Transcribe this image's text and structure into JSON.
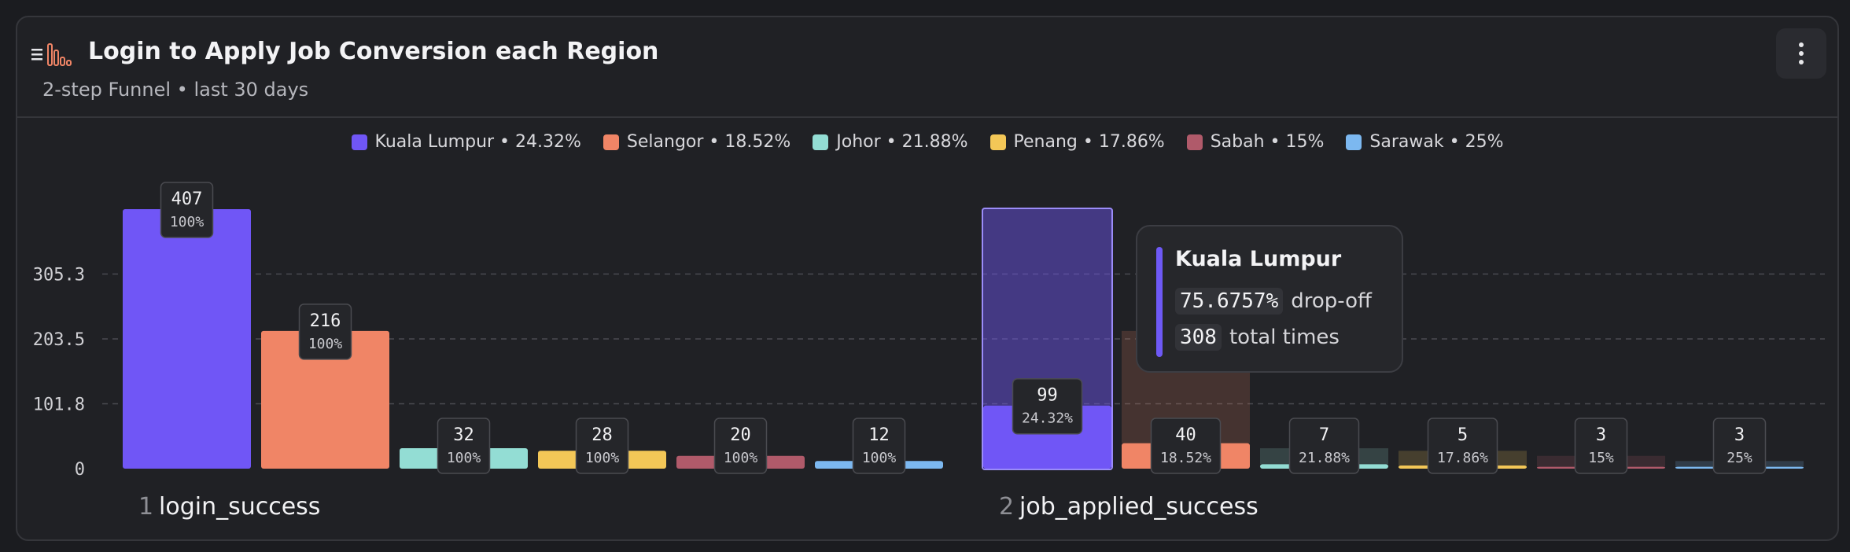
{
  "header": {
    "title": "Login to Apply Job Conversion each Region",
    "subtitle": "2-step Funnel • last 30 days",
    "icons": [
      "list-icon",
      "bar-chart-icon"
    ],
    "menu_icon": "more-vertical-icon"
  },
  "tooltip": {
    "title": "Kuala Lumpur",
    "dropoff_value": "75.6757%",
    "dropoff_label": "drop-off",
    "total_value": "308",
    "total_label": "total times"
  },
  "chart_data": {
    "type": "bar",
    "title": "Login to Apply Job Conversion each Region",
    "y_ticks": [
      "0",
      "101.8",
      "203.5",
      "305.3"
    ],
    "ylim": [
      0,
      407
    ],
    "grid": true,
    "legend_position": "top-center",
    "steps": [
      {
        "number": "1",
        "name": "login_success"
      },
      {
        "number": "2",
        "name": "job_applied_success"
      }
    ],
    "series": [
      {
        "name": "Kuala Lumpur",
        "legend": "Kuala Lumpur • 24.32%",
        "color": "#7056f6",
        "values": [
          407,
          99
        ],
        "labels": [
          [
            "407",
            "100%"
          ],
          [
            "99",
            "24.32%"
          ]
        ]
      },
      {
        "name": "Selangor",
        "legend": "Selangor • 18.52%",
        "color": "#f08566",
        "values": [
          216,
          40
        ],
        "labels": [
          [
            "216",
            "100%"
          ],
          [
            "40",
            "18.52%"
          ]
        ]
      },
      {
        "name": "Johor",
        "legend": "Johor • 21.88%",
        "color": "#93ddd4",
        "values": [
          32,
          7
        ],
        "labels": [
          [
            "32",
            "100%"
          ],
          [
            "7",
            "21.88%"
          ]
        ]
      },
      {
        "name": "Penang",
        "legend": "Penang • 17.86%",
        "color": "#f3c757",
        "values": [
          28,
          5
        ],
        "labels": [
          [
            "28",
            "100%"
          ],
          [
            "5",
            "17.86%"
          ]
        ]
      },
      {
        "name": "Sabah",
        "legend": "Sabah • 15%",
        "color": "#b05a6a",
        "values": [
          20,
          3
        ],
        "labels": [
          [
            "20",
            "100%"
          ],
          [
            "3",
            "15%"
          ]
        ]
      },
      {
        "name": "Sarawak",
        "legend": "Sarawak • 25%",
        "color": "#7cb8f0",
        "values": [
          12,
          3
        ],
        "labels": [
          [
            "12",
            "100%"
          ],
          [
            "3",
            "25%"
          ]
        ]
      }
    ]
  }
}
